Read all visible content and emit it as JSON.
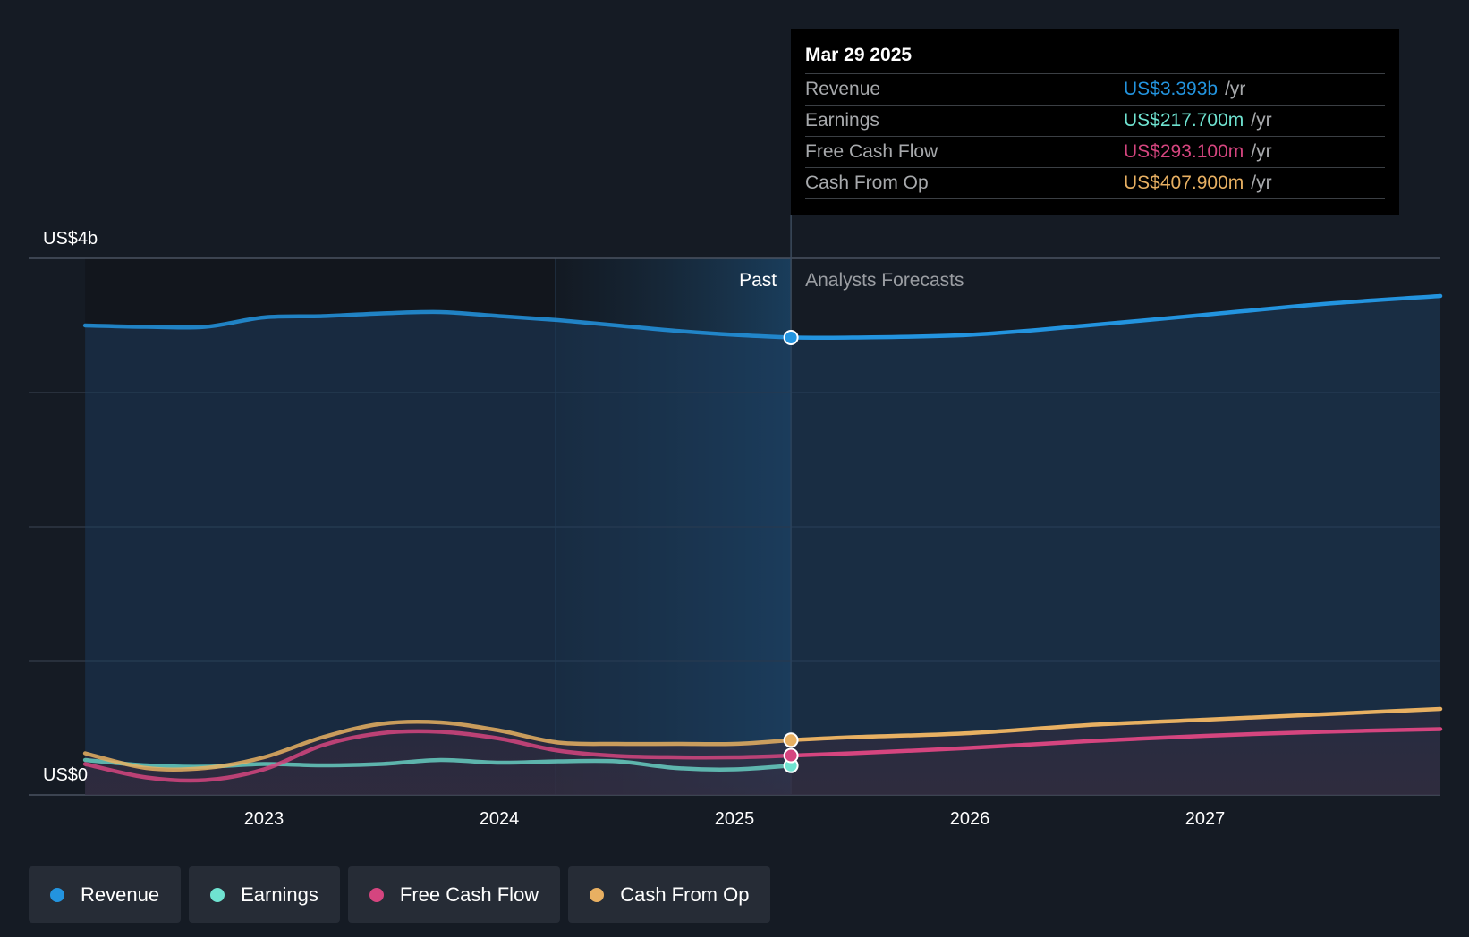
{
  "colors": {
    "background": "#151b24",
    "revenue": "#2394df",
    "earnings": "#6fe3d1",
    "free_cash_flow": "#d5457f",
    "cash_from_op": "#e8b062"
  },
  "tooltip": {
    "date": "Mar 29 2025",
    "rows": [
      {
        "label": "Revenue",
        "value": "US$3.393b",
        "unit": "/yr"
      },
      {
        "label": "Earnings",
        "value": "US$217.700m",
        "unit": "/yr"
      },
      {
        "label": "Free Cash Flow",
        "value": "US$293.100m",
        "unit": "/yr"
      },
      {
        "label": "Cash From Op",
        "value": "US$407.900m",
        "unit": "/yr"
      }
    ]
  },
  "legend": [
    {
      "label": "Revenue"
    },
    {
      "label": "Earnings"
    },
    {
      "label": "Free Cash Flow"
    },
    {
      "label": "Cash From Op"
    }
  ],
  "chart_data": {
    "type": "line",
    "title": "",
    "y_unit": "US$b",
    "ylim": [
      0,
      4
    ],
    "y_tick_labels": [
      {
        "value": 4,
        "label": "US$4b"
      },
      {
        "value": 0,
        "label": "US$0"
      }
    ],
    "y_gridlines": [
      0,
      1,
      2,
      3,
      4
    ],
    "x_range": [
      2022.0,
      2028.0
    ],
    "x_ticks": [
      {
        "value": 2023.0,
        "label": "2023"
      },
      {
        "value": 2024.0,
        "label": "2024"
      },
      {
        "value": 2025.0,
        "label": "2025"
      },
      {
        "value": 2026.0,
        "label": "2026"
      },
      {
        "value": 2027.0,
        "label": "2027"
      }
    ],
    "past_label": "Past",
    "forecast_label": "Analysts Forecasts",
    "divider_x": 2025.24,
    "highlight_start_x": 2024.24,
    "series": [
      {
        "name": "Revenue",
        "color_key": "revenue",
        "points": [
          [
            2022.24,
            3.5
          ],
          [
            2022.5,
            3.49
          ],
          [
            2022.75,
            3.49
          ],
          [
            2023.0,
            3.56
          ],
          [
            2023.25,
            3.57
          ],
          [
            2023.5,
            3.59
          ],
          [
            2023.75,
            3.6
          ],
          [
            2024.0,
            3.57
          ],
          [
            2024.25,
            3.54
          ],
          [
            2024.5,
            3.5
          ],
          [
            2024.75,
            3.46
          ],
          [
            2025.0,
            3.43
          ],
          [
            2025.24,
            3.41
          ]
        ],
        "forecast": [
          [
            2025.24,
            3.41
          ],
          [
            2025.5,
            3.41
          ],
          [
            2026.0,
            3.43
          ],
          [
            2026.5,
            3.5
          ],
          [
            2027.0,
            3.58
          ],
          [
            2027.5,
            3.66
          ],
          [
            2028.0,
            3.72
          ]
        ],
        "fill": true
      },
      {
        "name": "Earnings",
        "color_key": "earnings",
        "points": [
          [
            2022.24,
            0.26
          ],
          [
            2022.5,
            0.22
          ],
          [
            2022.75,
            0.21
          ],
          [
            2023.0,
            0.23
          ],
          [
            2023.25,
            0.22
          ],
          [
            2023.5,
            0.23
          ],
          [
            2023.75,
            0.26
          ],
          [
            2024.0,
            0.24
          ],
          [
            2024.25,
            0.25
          ],
          [
            2024.5,
            0.25
          ],
          [
            2024.75,
            0.2
          ],
          [
            2025.0,
            0.19
          ],
          [
            2025.24,
            0.218
          ]
        ],
        "forecast": []
      },
      {
        "name": "Free Cash Flow",
        "color_key": "free_cash_flow",
        "points": [
          [
            2022.24,
            0.23
          ],
          [
            2022.5,
            0.13
          ],
          [
            2022.75,
            0.11
          ],
          [
            2023.0,
            0.19
          ],
          [
            2023.25,
            0.37
          ],
          [
            2023.5,
            0.46
          ],
          [
            2023.75,
            0.47
          ],
          [
            2024.0,
            0.42
          ],
          [
            2024.25,
            0.33
          ],
          [
            2024.5,
            0.29
          ],
          [
            2024.75,
            0.28
          ],
          [
            2025.0,
            0.28
          ],
          [
            2025.24,
            0.293
          ]
        ],
        "forecast": [
          [
            2025.24,
            0.293
          ],
          [
            2025.5,
            0.31
          ],
          [
            2026.0,
            0.35
          ],
          [
            2026.5,
            0.4
          ],
          [
            2027.0,
            0.44
          ],
          [
            2027.5,
            0.47
          ],
          [
            2028.0,
            0.49
          ]
        ]
      },
      {
        "name": "Cash From Op",
        "color_key": "cash_from_op",
        "points": [
          [
            2022.24,
            0.31
          ],
          [
            2022.5,
            0.2
          ],
          [
            2022.75,
            0.2
          ],
          [
            2023.0,
            0.28
          ],
          [
            2023.25,
            0.43
          ],
          [
            2023.5,
            0.53
          ],
          [
            2023.75,
            0.54
          ],
          [
            2024.0,
            0.48
          ],
          [
            2024.25,
            0.39
          ],
          [
            2024.5,
            0.38
          ],
          [
            2024.75,
            0.38
          ],
          [
            2025.0,
            0.38
          ],
          [
            2025.24,
            0.408
          ]
        ],
        "forecast": [
          [
            2025.24,
            0.408
          ],
          [
            2025.5,
            0.43
          ],
          [
            2026.0,
            0.46
          ],
          [
            2026.5,
            0.52
          ],
          [
            2027.0,
            0.56
          ],
          [
            2027.5,
            0.6
          ],
          [
            2028.0,
            0.64
          ]
        ]
      }
    ]
  }
}
